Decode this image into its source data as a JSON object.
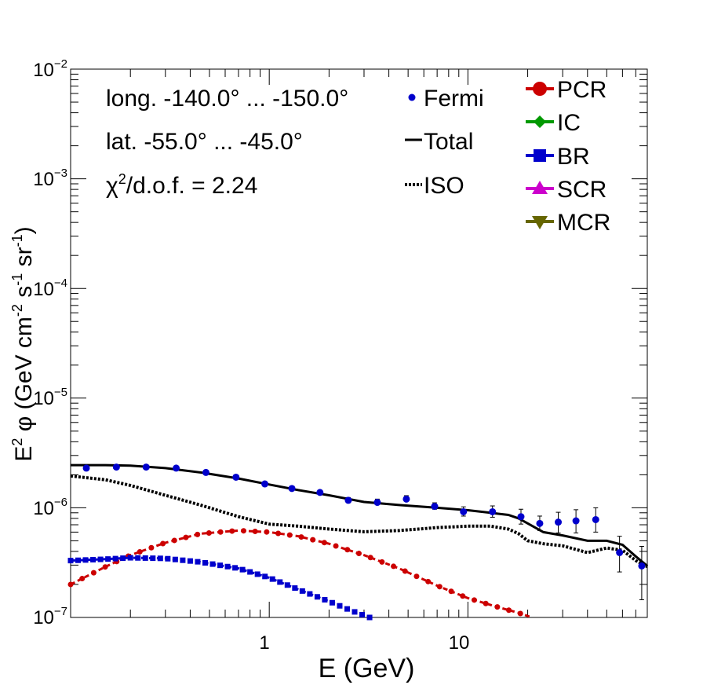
{
  "chart_data": {
    "type": "scatter",
    "xscale": "log",
    "yscale": "log",
    "xlim": [
      0.1,
      80
    ],
    "ylim": [
      1e-07,
      0.01
    ],
    "xlabel": "E (GeV)",
    "ylabel": {
      "prefix": "E",
      "prefix_sup": "2",
      "mid": " φ (GeV cm",
      "sup1": "-2",
      "mid2": " s",
      "sup2": "-1",
      "mid3": " sr",
      "sup3": "-1",
      "suffix": ")"
    },
    "x_tick_labels": [
      {
        "value": 1,
        "label": "1"
      },
      {
        "value": 10,
        "label": "10"
      }
    ],
    "y_tick_labels": [
      {
        "exp": -7,
        "base": "10",
        "sup": "−7"
      },
      {
        "exp": -6,
        "base": "10",
        "sup": "−6"
      },
      {
        "exp": -5,
        "base": "10",
        "sup": "−5"
      },
      {
        "exp": -4,
        "base": "10",
        "sup": "−4"
      },
      {
        "exp": -3,
        "base": "10",
        "sup": "−3"
      },
      {
        "exp": -2,
        "base": "10",
        "sup": "−2"
      }
    ],
    "annotations": {
      "longitude": "long. -140.0° ... -150.0°",
      "latitude": "lat. -55.0° ... -45.0°",
      "chi2_symbol": "χ",
      "chi2_sup": "2",
      "chi2_rest": "/d.o.f. = 2.24"
    },
    "legend_left": [
      {
        "name": "Fermi",
        "style": "dot"
      },
      {
        "name": "Total",
        "style": "solid"
      },
      {
        "name": "ISO",
        "style": "dotted"
      }
    ],
    "legend_right": [
      {
        "name": "PCR",
        "color": "#cc0000",
        "marker": "circle"
      },
      {
        "name": "IC",
        "color": "#009900",
        "marker": "diamond"
      },
      {
        "name": "BR",
        "color": "#0000cc",
        "marker": "square"
      },
      {
        "name": "SCR",
        "color": "#cc00cc",
        "marker": "triangle-up"
      },
      {
        "name": "MCR",
        "color": "#666600",
        "marker": "triangle-down"
      }
    ],
    "fermi": {
      "name": "Fermi",
      "color": "#0000cc",
      "x": [
        0.12,
        0.17,
        0.24,
        0.34,
        0.48,
        0.68,
        0.95,
        1.3,
        1.8,
        2.5,
        3.5,
        4.9,
        6.8,
        9.5,
        13.3,
        18.5,
        23,
        28.5,
        35,
        44,
        58,
        75
      ],
      "y": [
        2.3e-06,
        2.35e-06,
        2.35e-06,
        2.3e-06,
        2.1e-06,
        1.9e-06,
        1.65e-06,
        1.5e-06,
        1.38e-06,
        1.17e-06,
        1.12e-06,
        1.2e-06,
        1.03e-06,
        9.2e-07,
        9.2e-07,
        8.3e-07,
        7.2e-07,
        7.4e-07,
        7.6e-07,
        7.8e-07,
        3.9e-07,
        2.95e-07
      ],
      "err_low": [
        0,
        0,
        0,
        0,
        0,
        0,
        0,
        0,
        0,
        0,
        0,
        0,
        6e-08,
        8e-08,
        1e-07,
        1.2e-07,
        1e-07,
        1.5e-07,
        1.7e-07,
        1.8e-07,
        1.3e-07,
        1.5e-07
      ],
      "err_high": [
        0,
        0,
        0,
        0,
        0,
        0,
        0,
        0,
        6e-08,
        7e-08,
        8e-08,
        9e-08,
        8e-08,
        1e-07,
        1.2e-07,
        1.4e-07,
        1.2e-07,
        1.7e-07,
        2e-07,
        2.2e-07,
        1.6e-07,
        1.5e-07
      ]
    },
    "series": [
      {
        "name": "Total",
        "style": "solid",
        "color": "#000000",
        "x": [
          0.1,
          0.15,
          0.2,
          0.3,
          0.45,
          0.7,
          1.0,
          1.4,
          2.0,
          3.0,
          4.5,
          7.0,
          10,
          13,
          16,
          18,
          20,
          24,
          30,
          40,
          50,
          60,
          70,
          80
        ],
        "y": [
          2.45e-06,
          2.45e-06,
          2.42e-06,
          2.3e-06,
          2.1e-06,
          1.85e-06,
          1.63e-06,
          1.45e-06,
          1.3e-06,
          1.13e-06,
          1.06e-06,
          1e-06,
          9.5e-07,
          9e-07,
          8.6e-07,
          8e-07,
          7.2e-07,
          6e-07,
          5.6e-07,
          5e-07,
          5e-07,
          4.6e-07,
          3.6e-07,
          2.95e-07
        ]
      },
      {
        "name": "ISO",
        "style": "dotted",
        "color": "#000000",
        "x": [
          0.1,
          0.15,
          0.2,
          0.3,
          0.45,
          0.7,
          1.0,
          1.4,
          2.0,
          3.0,
          4.5,
          7.0,
          10,
          13,
          16,
          18,
          20,
          24,
          30,
          40,
          50,
          60,
          70,
          80
        ],
        "y": [
          1.95e-06,
          1.8e-06,
          1.6e-06,
          1.3e-06,
          1.06e-06,
          8.3e-07,
          7.1e-07,
          6.8e-07,
          6.4e-07,
          6.05e-07,
          6.2e-07,
          6.6e-07,
          6.8e-07,
          6.8e-07,
          6.4e-07,
          5.8e-07,
          5e-07,
          4.7e-07,
          4.5e-07,
          3.9e-07,
          4.3e-07,
          4.1e-07,
          3.3e-07,
          2.9e-07
        ]
      },
      {
        "name": "PCR",
        "style": "marker-line",
        "marker": "circle",
        "color": "#cc0000",
        "x": [
          0.1,
          0.15,
          0.2,
          0.3,
          0.45,
          0.7,
          1.0,
          1.4,
          2.0,
          3.0,
          4.5,
          7.0,
          10,
          14,
          18,
          21
        ],
        "y": [
          2e-07,
          2.9e-07,
          3.7e-07,
          4.8e-07,
          5.8e-07,
          6.2e-07,
          6e-07,
          5.5e-07,
          4.7e-07,
          3.7e-07,
          2.8e-07,
          1.95e-07,
          1.5e-07,
          1.25e-07,
          1.1e-07,
          1e-07
        ]
      },
      {
        "name": "BR",
        "style": "marker-line",
        "marker": "square",
        "color": "#0000cc",
        "x": [
          0.1,
          0.15,
          0.2,
          0.3,
          0.45,
          0.7,
          1.0,
          1.4,
          2.0,
          2.6,
          3.2
        ],
        "y": [
          3.3e-07,
          3.4e-07,
          3.5e-07,
          3.45e-07,
          3.2e-07,
          2.8e-07,
          2.3e-07,
          1.8e-07,
          1.4e-07,
          1.15e-07,
          1e-07
        ]
      }
    ]
  }
}
